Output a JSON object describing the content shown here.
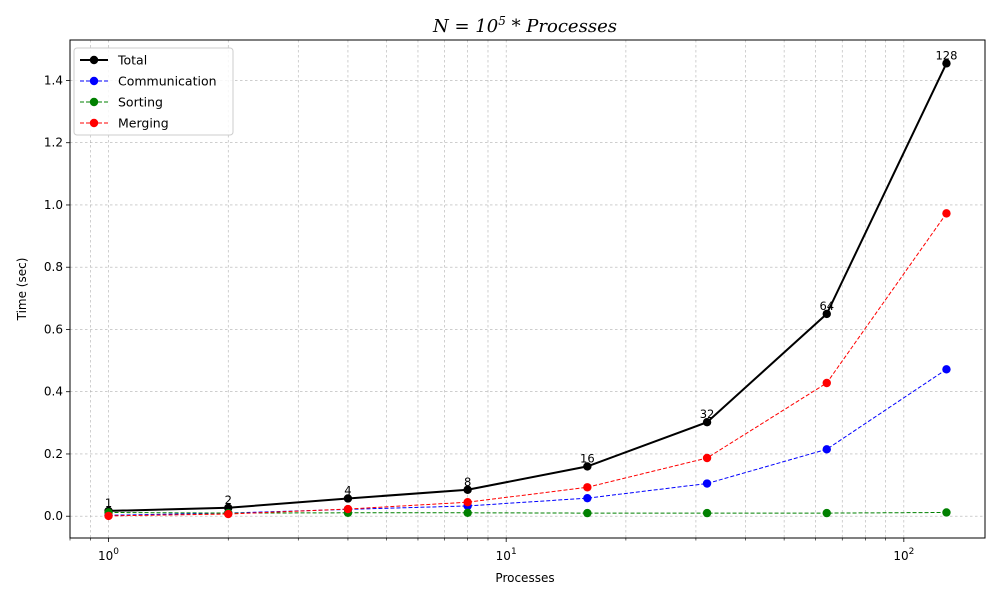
{
  "chart_data": {
    "type": "line",
    "title_parts": {
      "base": "N = 10",
      "exponent": "5",
      "suffix": " * Processes"
    },
    "xlabel": "Processes",
    "ylabel": "Time (sec)",
    "x_scale": "log",
    "xlim": [
      0.8,
      160
    ],
    "ylim": [
      -0.07,
      1.53
    ],
    "x": [
      1,
      2,
      4,
      8,
      16,
      32,
      64,
      128
    ],
    "point_labels": [
      "1",
      "2",
      "4",
      "8",
      "16",
      "32",
      "64",
      "128"
    ],
    "x_ticks": [
      {
        "value": 1,
        "base": "10",
        "exp": "0"
      },
      {
        "value": 10,
        "base": "10",
        "exp": "1"
      },
      {
        "value": 100,
        "base": "10",
        "exp": "2"
      }
    ],
    "y_ticks": [
      "0.0",
      "0.2",
      "0.4",
      "0.6",
      "0.8",
      "1.0",
      "1.2",
      "1.4"
    ],
    "grid": true,
    "legend_position": "top-left",
    "series": [
      {
        "name": "Total",
        "color": "#000000",
        "style": "solid",
        "values": [
          0.017,
          0.027,
          0.057,
          0.085,
          0.16,
          0.302,
          0.65,
          1.455
        ]
      },
      {
        "name": "Communication",
        "color": "#0000ff",
        "style": "dashed",
        "values": [
          0.003,
          0.01,
          0.022,
          0.033,
          0.058,
          0.105,
          0.215,
          0.472
        ]
      },
      {
        "name": "Sorting",
        "color": "#008000",
        "style": "dashed",
        "values": [
          0.012,
          0.01,
          0.011,
          0.011,
          0.01,
          0.01,
          0.01,
          0.012
        ]
      },
      {
        "name": "Merging",
        "color": "#ff0000",
        "style": "dashed",
        "values": [
          0.001,
          0.007,
          0.023,
          0.045,
          0.093,
          0.187,
          0.428,
          0.973
        ]
      }
    ]
  }
}
